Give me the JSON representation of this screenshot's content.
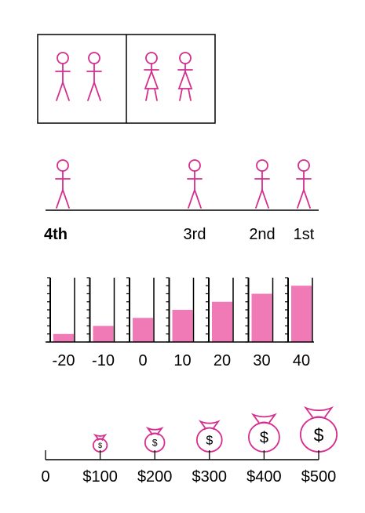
{
  "ordinal_line": {
    "labels": [
      "4th",
      "3rd",
      "2nd",
      "1st"
    ]
  },
  "thermometers": {
    "values": [
      -20,
      -10,
      0,
      10,
      20,
      30,
      40
    ],
    "labels": [
      "-20",
      "-10",
      "0",
      "10",
      "20",
      "30",
      "40"
    ],
    "range": [
      -30,
      50
    ]
  },
  "money_line": {
    "tick_labels": [
      "0",
      "$100",
      "$200",
      "$300",
      "$400",
      "$500"
    ],
    "bag_values": [
      100,
      200,
      300,
      400,
      500
    ],
    "bag_symbol": "$"
  },
  "colors": {
    "accent": "#d52e8e",
    "fill": "#f07ab6",
    "line": "#000000"
  }
}
